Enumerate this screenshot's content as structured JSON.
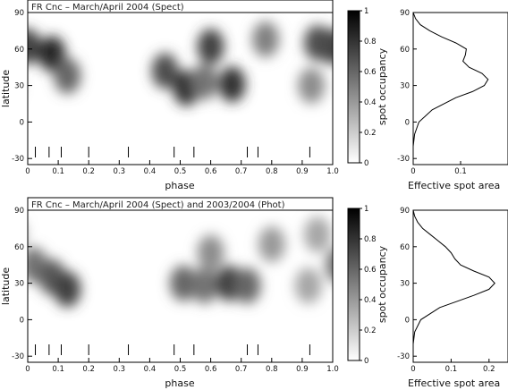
{
  "chart_data": [
    {
      "type": "heatmap",
      "title": "FR Cnc – March/April 2004 (Spect)",
      "xlabel": "phase",
      "ylabel": "latitude",
      "xlim": [
        0,
        1.0
      ],
      "ylim": [
        -35,
        90
      ],
      "x_ticks": [
        "0",
        "0.1",
        "0.2",
        "0.3",
        "0.4",
        "0.5",
        "0.6",
        "0.7",
        "0.8",
        "0.9",
        "1.0"
      ],
      "y_ticks": [
        "-30",
        "0",
        "30",
        "60",
        "90"
      ],
      "observation_phases": [
        0.025,
        0.07,
        0.11,
        0.2,
        0.33,
        0.48,
        0.545,
        0.72,
        0.755,
        0.925
      ],
      "colorbar": {
        "label": "spot occupancy",
        "range": [
          0,
          1
        ],
        "ticks": [
          "0",
          "0.2",
          "0.4",
          "0.6",
          "0.8",
          "1"
        ]
      },
      "spots": [
        {
          "phase": 0.0,
          "latitude": 62,
          "occupancy": 0.75
        },
        {
          "phase": 0.08,
          "latitude": 56,
          "occupancy": 0.85
        },
        {
          "phase": 0.13,
          "latitude": 38,
          "occupancy": 0.6
        },
        {
          "phase": 0.45,
          "latitude": 42,
          "occupancy": 0.7
        },
        {
          "phase": 0.52,
          "latitude": 28,
          "occupancy": 0.8
        },
        {
          "phase": 0.58,
          "latitude": 33,
          "occupancy": 0.55
        },
        {
          "phase": 0.67,
          "latitude": 31,
          "occupancy": 0.8
        },
        {
          "phase": 0.6,
          "latitude": 62,
          "occupancy": 0.75
        },
        {
          "phase": 0.78,
          "latitude": 68,
          "occupancy": 0.5
        },
        {
          "phase": 0.95,
          "latitude": 65,
          "occupancy": 0.7
        },
        {
          "phase": 0.93,
          "latitude": 30,
          "occupancy": 0.45
        }
      ],
      "side_profile": {
        "xlabel": "Effective spot area",
        "xlim": [
          0,
          0.2
        ],
        "x_ticks": [
          "0",
          "0.1"
        ],
        "y_ticks": [
          "-30",
          "0",
          "30",
          "60",
          "90"
        ],
        "latitude": [
          -35,
          -20,
          -10,
          0,
          10,
          20,
          25,
          30,
          35,
          40,
          45,
          50,
          55,
          60,
          65,
          70,
          75,
          80,
          85,
          90
        ],
        "area": [
          0.0,
          0.0,
          0.003,
          0.012,
          0.04,
          0.09,
          0.125,
          0.15,
          0.158,
          0.145,
          0.118,
          0.105,
          0.11,
          0.112,
          0.09,
          0.06,
          0.035,
          0.015,
          0.005,
          0.0
        ]
      }
    },
    {
      "type": "heatmap",
      "title": "FR Cnc – March/April 2004 (Spect) and 2003/2004 (Phot)",
      "xlabel": "phase",
      "ylabel": "latitude",
      "xlim": [
        0,
        1.0
      ],
      "ylim": [
        -35,
        90
      ],
      "x_ticks": [
        "0",
        "0.1",
        "0.2",
        "0.3",
        "0.4",
        "0.5",
        "0.6",
        "0.7",
        "0.8",
        "0.9",
        "1.0"
      ],
      "y_ticks": [
        "-30",
        "0",
        "30",
        "60",
        "90"
      ],
      "observation_phases": [
        0.025,
        0.07,
        0.11,
        0.2,
        0.33,
        0.48,
        0.545,
        0.72,
        0.755,
        0.925
      ],
      "colorbar": {
        "label": "spot occupancy",
        "range": [
          0,
          1
        ],
        "ticks": [
          "0",
          "0.2",
          "0.4",
          "0.6",
          "0.8",
          "1"
        ]
      },
      "spots": [
        {
          "phase": 0.02,
          "latitude": 45,
          "occupancy": 0.55
        },
        {
          "phase": 0.08,
          "latitude": 35,
          "occupancy": 0.65
        },
        {
          "phase": 0.13,
          "latitude": 25,
          "occupancy": 0.75
        },
        {
          "phase": 0.51,
          "latitude": 30,
          "occupancy": 0.6
        },
        {
          "phase": 0.58,
          "latitude": 28,
          "occupancy": 0.55
        },
        {
          "phase": 0.66,
          "latitude": 30,
          "occupancy": 0.75
        },
        {
          "phase": 0.72,
          "latitude": 28,
          "occupancy": 0.6
        },
        {
          "phase": 0.6,
          "latitude": 55,
          "occupancy": 0.45
        },
        {
          "phase": 0.8,
          "latitude": 62,
          "occupancy": 0.4
        },
        {
          "phase": 0.92,
          "latitude": 28,
          "occupancy": 0.35
        },
        {
          "phase": 0.95,
          "latitude": 70,
          "occupancy": 0.35
        }
      ],
      "side_profile": {
        "xlabel": "Effective spot area",
        "xlim": [
          0,
          0.25
        ],
        "x_ticks": [
          "0",
          "0.1",
          "0.2"
        ],
        "y_ticks": [
          "-30",
          "0",
          "30",
          "60",
          "90"
        ],
        "latitude": [
          -35,
          -20,
          -10,
          0,
          10,
          20,
          25,
          30,
          35,
          40,
          45,
          50,
          55,
          60,
          65,
          70,
          75,
          80,
          85,
          90
        ],
        "area": [
          0.0,
          0.0,
          0.004,
          0.02,
          0.07,
          0.16,
          0.2,
          0.215,
          0.2,
          0.16,
          0.125,
          0.11,
          0.1,
          0.085,
          0.065,
          0.045,
          0.025,
          0.012,
          0.004,
          0.0
        ]
      }
    }
  ]
}
